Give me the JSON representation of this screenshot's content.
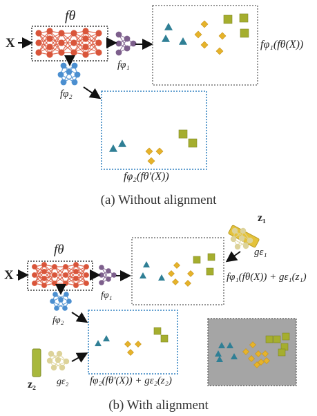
{
  "panel_a": {
    "caption": "(a) Without alignment",
    "input_label": "X",
    "encoder_label": "fθ",
    "head1_label": "fφ₁",
    "head2_label": "fφ₂",
    "output1_label": "fφ₁(fθ(X))",
    "output2_label": "fφ₂(fθ'(X))"
  },
  "panel_b": {
    "caption": "(b) With alignment",
    "input_label": "X",
    "encoder_label": "fθ",
    "head1_label": "fφ₁",
    "head2_label": "fφ₂",
    "z1_label": "z₁",
    "z2_label": "z₂",
    "g1_label": "gε₁",
    "g2_label": "gε₂",
    "output1_label": "fφ₁(fθ(X)) + gε₁(z₁)",
    "output2_label": "fφ₂(fθ'(X)) + gε₂(z₂)"
  },
  "colors": {
    "encoder": "#d9553a",
    "head1": "#7d5f8c",
    "head2": "#4b8fd0",
    "generator": "#ddd39a",
    "code_bar": "#e4c23a",
    "code_bar2": "#a8b83c",
    "triangle": "#2f7f95",
    "diamond": "#e6b32a",
    "square": "#a5ae2e",
    "dotted_gray": "#777777",
    "dotted_blue": "#4f93c9",
    "aligned_bg": "#a5a5a5"
  }
}
